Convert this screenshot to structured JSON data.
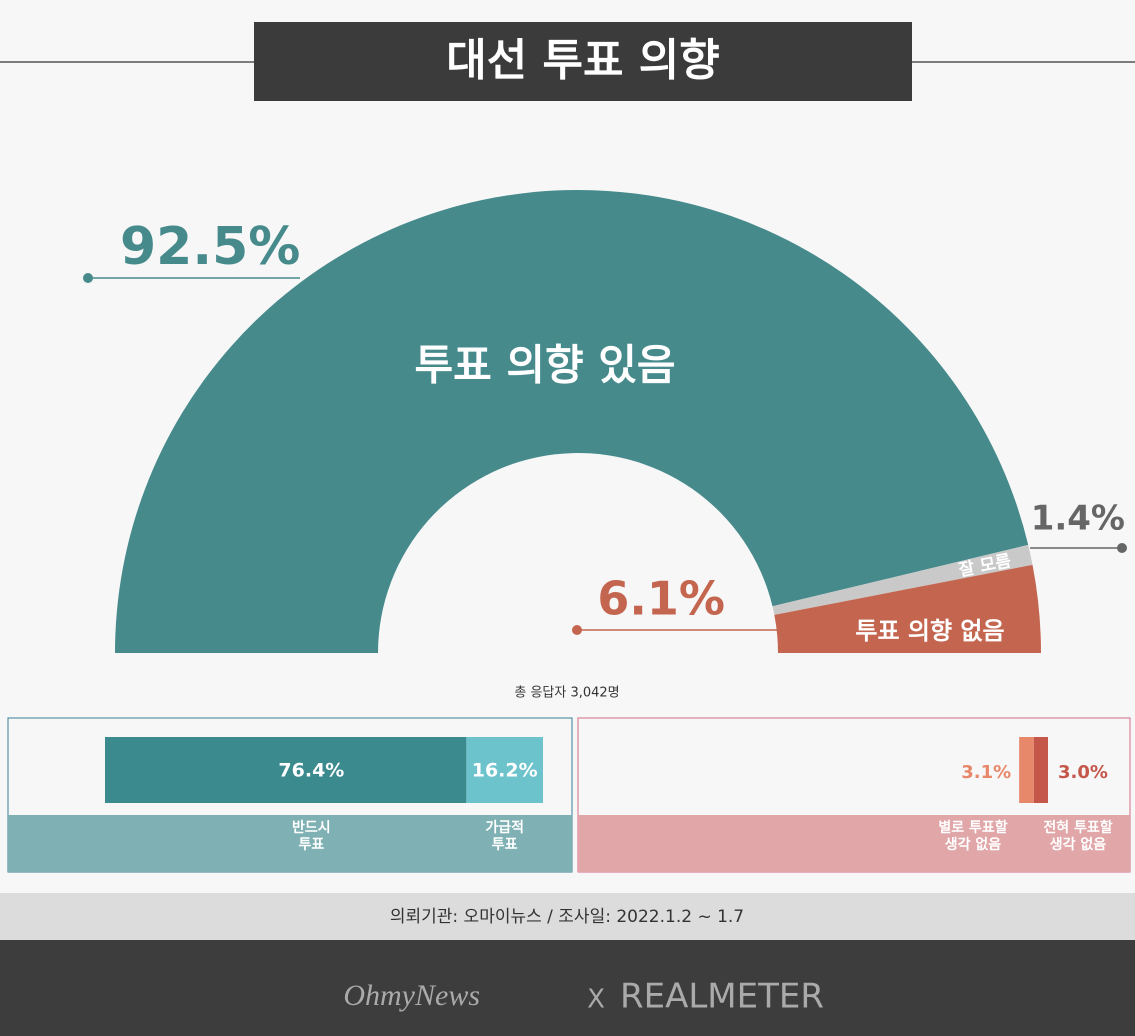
{
  "chart_data": {
    "type": "half-donut",
    "title": "대선 투표 의향",
    "categories": [
      "투표 의향 있음",
      "잘 모름",
      "투표 의향 없음"
    ],
    "values": [
      92.5,
      1.4,
      6.1
    ],
    "value_labels": [
      "92.5%",
      "1.4%",
      "6.1%"
    ],
    "colors": [
      "#468a8c",
      "#c9c9c9",
      "#c4664f"
    ],
    "note": "총 응답자 3,042명",
    "breakdowns": [
      {
        "categories": [
          "반드시\n투표",
          "가급적\n투표"
        ],
        "values": [
          76.4,
          16.2
        ],
        "value_labels": [
          "76.4%",
          "16.2%"
        ],
        "colors": [
          "#3a8a8e",
          "#6cc3cc"
        ]
      },
      {
        "categories": [
          "별로 투표할\n생각 없음",
          "전혀 투표할\n생각 없음"
        ],
        "values": [
          3.1,
          3.0
        ],
        "value_labels": [
          "3.1%",
          "3.0%"
        ],
        "colors": [
          "#e8886b",
          "#c4564a"
        ]
      }
    ],
    "source": "의뢰기관: 오마이뉴스  /  조사일: 2022.1.2 ~ 1.7",
    "footer": [
      "OhmyNews",
      "X",
      "REALMETER"
    ]
  }
}
